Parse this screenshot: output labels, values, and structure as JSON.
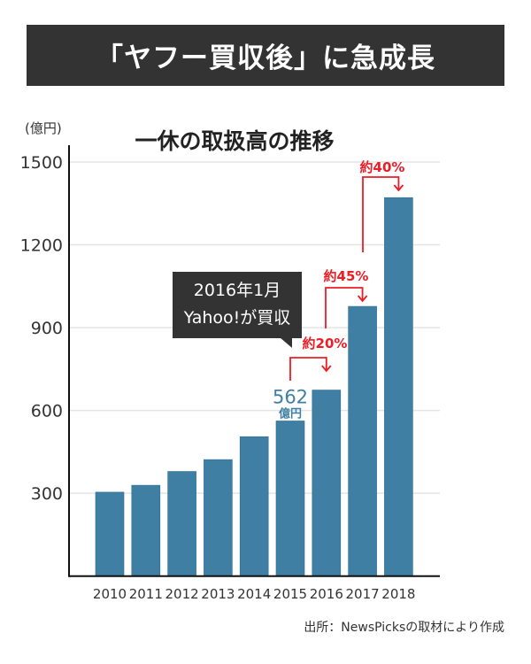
{
  "header": {
    "title": "「ヤフー買収後」に急成長"
  },
  "chart_data": {
    "type": "bar",
    "title": "一休の取扱高の推移",
    "ylabel": "(億円)",
    "xlabel": "",
    "categories": [
      "2010",
      "2011",
      "2012",
      "2013",
      "2014",
      "2015",
      "2016",
      "2017",
      "2018"
    ],
    "values": [
      304,
      329,
      379,
      422,
      505,
      562,
      674,
      977,
      1371
    ],
    "ylim": [
      0,
      1500
    ],
    "yticks": [
      "300",
      "600",
      "900",
      "1200",
      "1500"
    ],
    "grid": true,
    "bar_color": "#3e7fa3",
    "annotations": {
      "value_label": {
        "value": "562",
        "unit": "億円",
        "category": "2015",
        "color": "#3e7fa3"
      },
      "growth": [
        {
          "from": "2015",
          "to": "2016",
          "label": "約20%"
        },
        {
          "from": "2016",
          "to": "2017",
          "label": "約45%"
        },
        {
          "from": "2017",
          "to": "2018",
          "label": "約40%"
        }
      ],
      "growth_color": "#ee1c25",
      "callout": {
        "line1": "2016年1月",
        "line2": "Yahoo!が買収"
      }
    }
  },
  "source": "出所：NewsPicksの取材により作成"
}
